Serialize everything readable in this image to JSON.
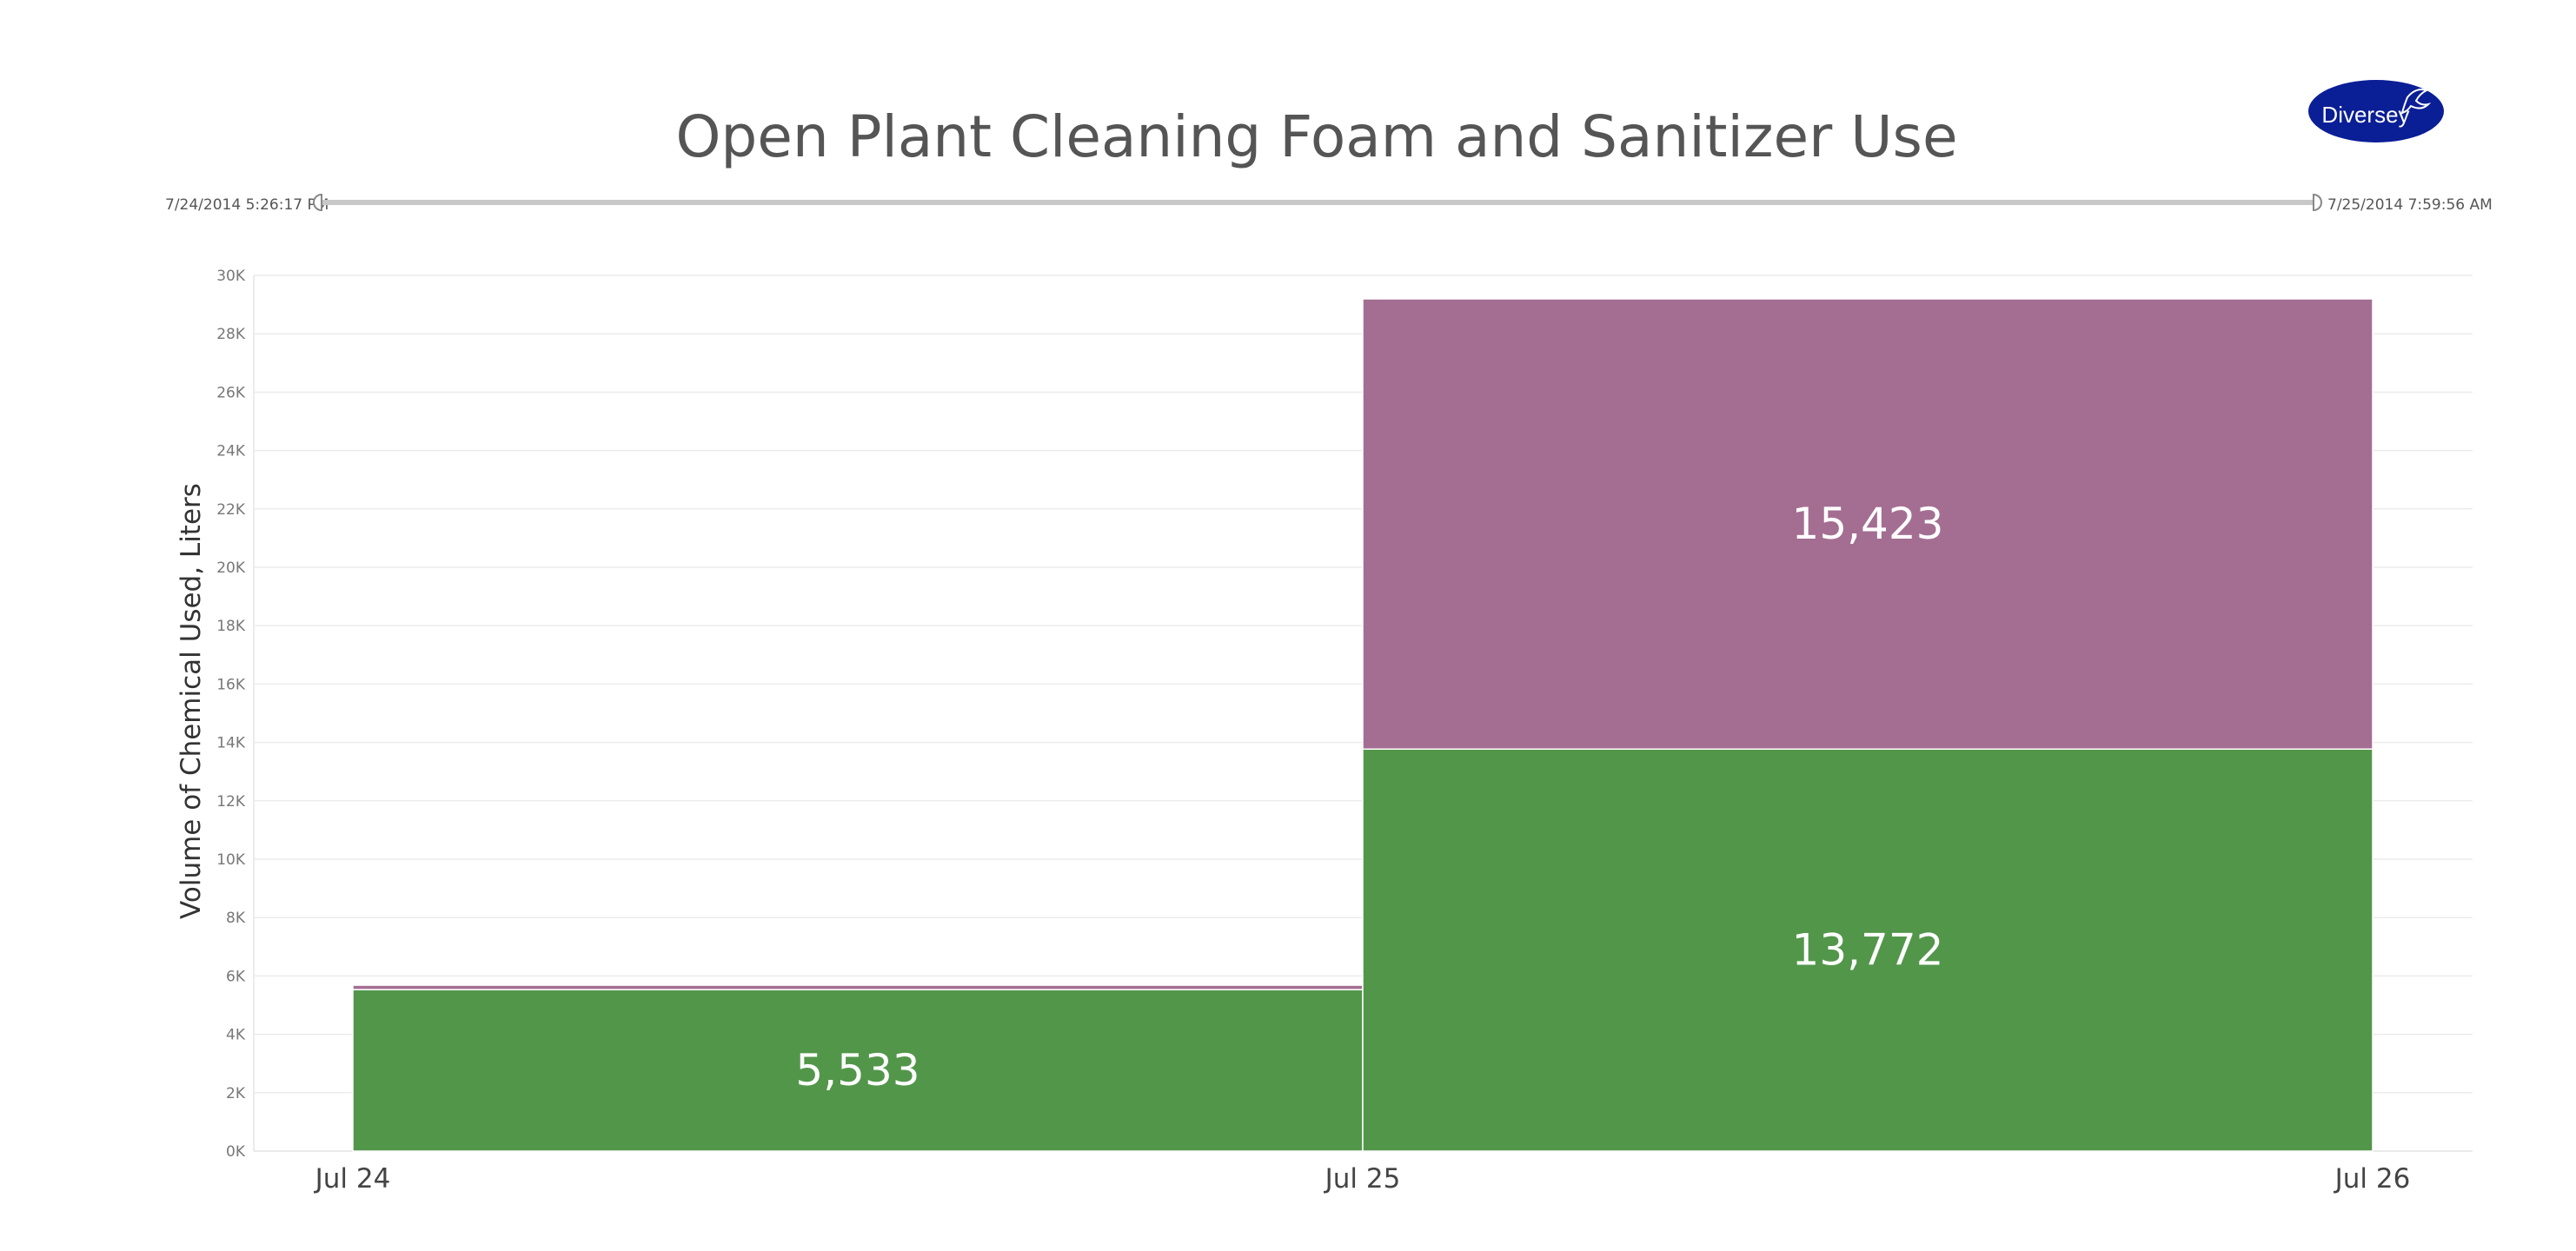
{
  "logo": {
    "text": "Diversey",
    "color": "#0A1E96"
  },
  "date_range": {
    "start_label": "7/24/2014 5:26:17 PM",
    "end_label": "7/25/2014 7:59:56 AM",
    "track_color": "#c8c8c8"
  },
  "chart_data": {
    "type": "bar",
    "stacked": true,
    "title": "Open Plant Cleaning Foam and Sanitizer Use",
    "xlabel": "",
    "ylabel": "Volume of Chemical Used, Liters",
    "x_ticks": [
      "Jul 24",
      "Jul 25",
      "Jul 26"
    ],
    "ylim": [
      0,
      30000
    ],
    "y_ticks": [
      0,
      2000,
      4000,
      6000,
      8000,
      10000,
      12000,
      14000,
      16000,
      18000,
      20000,
      22000,
      24000,
      26000,
      28000,
      30000
    ],
    "y_tick_labels": [
      "0K",
      "2K",
      "4K",
      "6K",
      "8K",
      "10K",
      "12K",
      "14K",
      "16K",
      "18K",
      "20K",
      "22K",
      "24K",
      "26K",
      "28K",
      "30K"
    ],
    "grid": true,
    "legend": "none",
    "bars": [
      {
        "from": "Jul 24",
        "to": "Jul 25"
      },
      {
        "from": "Jul 25",
        "to": "Jul 26"
      }
    ],
    "series": [
      {
        "color": "#52964A",
        "values": [
          5533,
          13772
        ],
        "labels": [
          "5,533",
          "13,772"
        ]
      },
      {
        "color": "#A46E92",
        "values": [
          150,
          15423
        ],
        "labels": [
          "",
          "15,423"
        ]
      }
    ]
  }
}
